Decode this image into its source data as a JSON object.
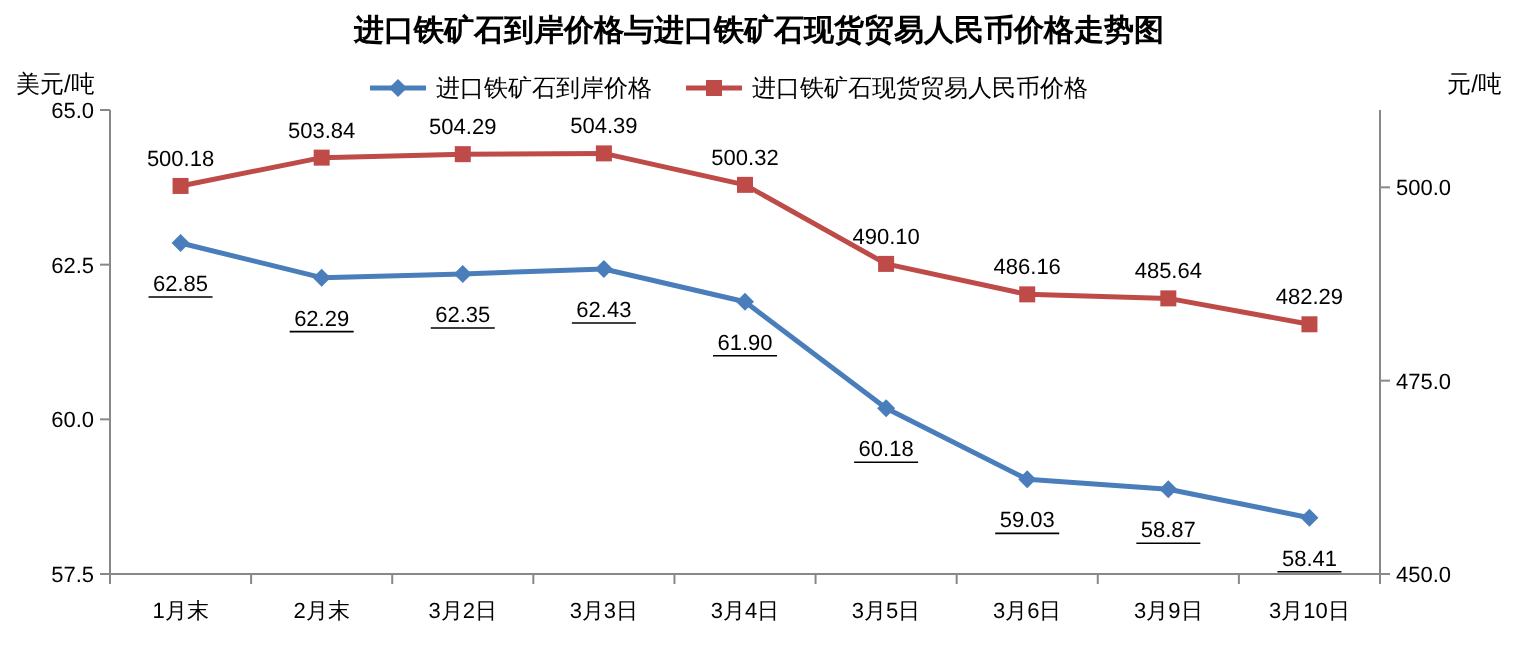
{
  "chart_data": {
    "type": "line",
    "title": "进口铁矿石到岸价格与进口铁矿石现货贸易人民币价格走势图",
    "ylabel": "美元/吨",
    "y2label": "元/吨",
    "categories": [
      "1月末",
      "2月末",
      "3月2日",
      "3月3日",
      "3月4日",
      "3月5日",
      "3月6日",
      "3月9日",
      "3月10日"
    ],
    "series": [
      {
        "name": "进口铁矿石到岸价格",
        "color": "#4a7ebb",
        "marker": "diamond",
        "values": [
          62.85,
          62.29,
          62.35,
          62.43,
          61.9,
          60.18,
          59.03,
          58.87,
          58.41
        ],
        "value_labels": [
          "62.85",
          "62.29",
          "62.35",
          "62.43",
          "61.90",
          "60.18",
          "59.03",
          "58.87",
          "58.41"
        ]
      },
      {
        "name": "进口铁矿石现货贸易人民币价格",
        "color": "#be4b48",
        "marker": "square",
        "axis": "y2",
        "values": [
          500.18,
          503.84,
          504.29,
          504.39,
          500.32,
          490.1,
          486.16,
          485.64,
          482.29
        ],
        "value_labels": [
          "500.18",
          "503.84",
          "504.29",
          "504.39",
          "500.32",
          "490.10",
          "486.16",
          "485.64",
          "482.29"
        ]
      }
    ],
    "ylim": [
      57.5,
      65
    ],
    "yticks": [
      {
        "value": 57.5,
        "label": "57.5"
      },
      {
        "value": 60,
        "label": "60.0"
      },
      {
        "value": 62.5,
        "label": "62.5"
      },
      {
        "value": 65,
        "label": "65.0"
      }
    ],
    "y2lim": [
      450,
      510
    ],
    "y2ticks": [
      {
        "value": 450,
        "label": "450.0"
      },
      {
        "value": 475,
        "label": "475.0"
      },
      {
        "value": 500,
        "label": "500.0"
      }
    ],
    "legend": "top",
    "grid": false
  }
}
